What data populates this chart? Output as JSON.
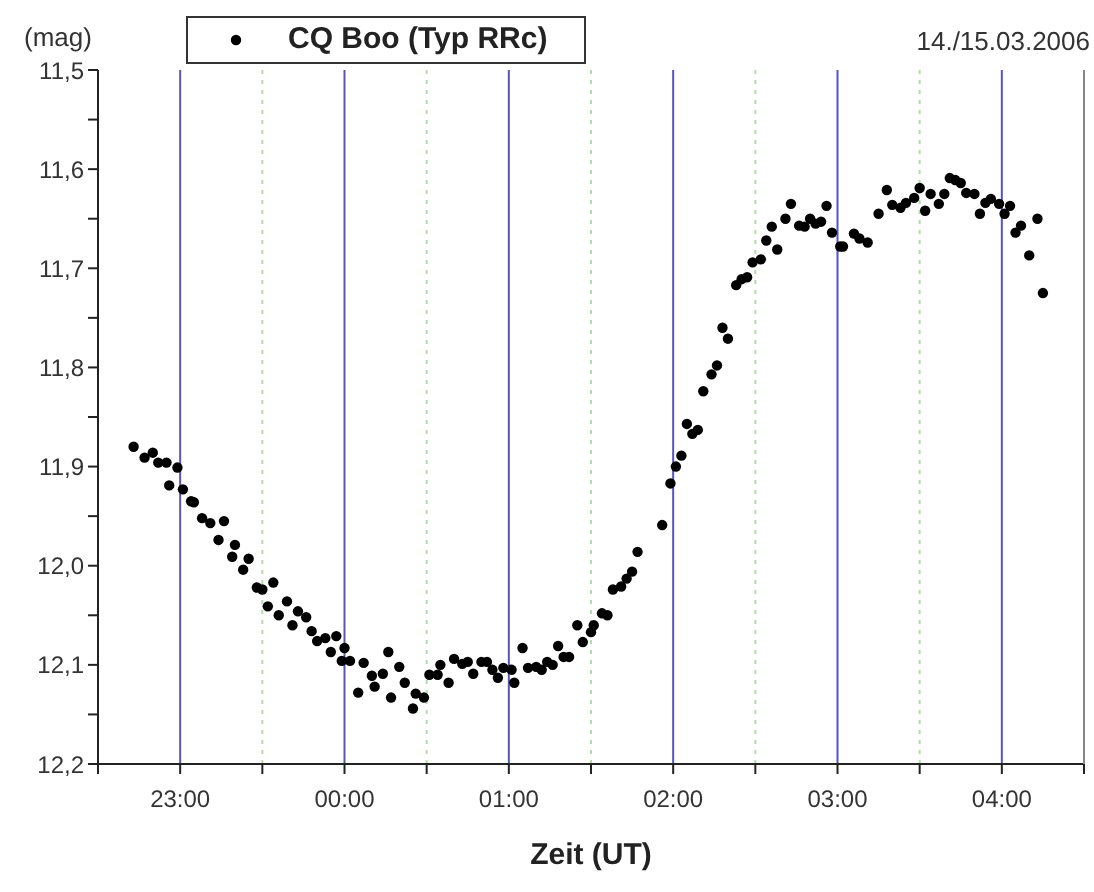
{
  "chart_data": {
    "type": "scatter",
    "subtitle": "14./15.03.2006",
    "xlabel": "Zeit (UT)",
    "ylabel": "(mag)",
    "legend": "top",
    "grid": "x",
    "marker": "circle",
    "xlim": [
      "2006-03-14T22:30",
      "2006-03-15T04:30"
    ],
    "xticks": [
      {
        "value": "2006-03-14T22:30",
        "label": null
      },
      {
        "value": "2006-03-14T23:00",
        "label": "23:00"
      },
      {
        "value": "2006-03-14T23:30",
        "label": null
      },
      {
        "value": "2006-03-15T00:00",
        "label": "00:00"
      },
      {
        "value": "2006-03-15T00:30",
        "label": null
      },
      {
        "value": "2006-03-15T01:00",
        "label": "01:00"
      },
      {
        "value": "2006-03-15T01:30",
        "label": null
      },
      {
        "value": "2006-03-15T02:00",
        "label": "02:00"
      },
      {
        "value": "2006-03-15T02:30",
        "label": null
      },
      {
        "value": "2006-03-15T03:00",
        "label": "03:00"
      },
      {
        "value": "2006-03-15T03:30",
        "label": null
      },
      {
        "value": "2006-03-15T04:00",
        "label": "04:00"
      },
      {
        "value": "2006-03-15T04:30",
        "label": null
      }
    ],
    "ylim": [
      12.2,
      11.5
    ],
    "yticks": [
      {
        "value": 11.5,
        "label": "11,5"
      },
      {
        "value": 11.55,
        "label": null
      },
      {
        "value": 11.6,
        "label": "11,6"
      },
      {
        "value": 11.65,
        "label": null
      },
      {
        "value": 11.7,
        "label": "11,7"
      },
      {
        "value": 11.75,
        "label": null
      },
      {
        "value": 11.8,
        "label": "11,8"
      },
      {
        "value": 11.85,
        "label": null
      },
      {
        "value": 11.9,
        "label": "11,9"
      },
      {
        "value": 11.95,
        "label": null
      },
      {
        "value": 12.0,
        "label": "12,0"
      },
      {
        "value": 12.05,
        "label": null
      },
      {
        "value": 12.1,
        "label": "12,1"
      },
      {
        "value": 12.15,
        "label": null
      },
      {
        "value": 12.2,
        "label": "12,2"
      }
    ],
    "series": [
      {
        "name": "CQ Boo (Typ RRc)",
        "color": "#000000",
        "x": [
          "2006-03-14T22:43",
          "2006-03-14T22:47",
          "2006-03-14T22:50",
          "2006-03-14T22:52",
          "2006-03-14T22:55",
          "2006-03-14T22:56",
          "2006-03-14T22:59",
          "2006-03-14T23:01",
          "2006-03-14T23:04",
          "2006-03-14T23:05",
          "2006-03-14T23:08",
          "2006-03-14T23:11",
          "2006-03-14T23:14",
          "2006-03-14T23:16",
          "2006-03-14T23:19",
          "2006-03-14T23:20",
          "2006-03-14T23:23",
          "2006-03-14T23:25",
          "2006-03-14T23:28",
          "2006-03-14T23:30",
          "2006-03-14T23:32",
          "2006-03-14T23:34",
          "2006-03-14T23:36",
          "2006-03-14T23:39",
          "2006-03-14T23:41",
          "2006-03-14T23:43",
          "2006-03-14T23:46",
          "2006-03-14T23:48",
          "2006-03-14T23:50",
          "2006-03-14T23:53",
          "2006-03-14T23:55",
          "2006-03-14T23:57",
          "2006-03-14T23:59",
          "2006-03-15T00:00",
          "2006-03-15T00:02",
          "2006-03-15T00:05",
          "2006-03-15T00:07",
          "2006-03-15T00:10",
          "2006-03-15T00:11",
          "2006-03-15T00:14",
          "2006-03-15T00:16",
          "2006-03-15T00:17",
          "2006-03-15T00:20",
          "2006-03-15T00:22",
          "2006-03-15T00:25",
          "2006-03-15T00:26",
          "2006-03-15T00:29",
          "2006-03-15T00:31",
          "2006-03-15T00:34",
          "2006-03-15T00:35",
          "2006-03-15T00:38",
          "2006-03-15T00:40",
          "2006-03-15T00:43",
          "2006-03-15T00:45",
          "2006-03-15T00:47",
          "2006-03-15T00:50",
          "2006-03-15T00:52",
          "2006-03-15T00:54",
          "2006-03-15T00:56",
          "2006-03-15T00:58",
          "2006-03-15T01:01",
          "2006-03-15T01:02",
          "2006-03-15T01:05",
          "2006-03-15T01:07",
          "2006-03-15T01:10",
          "2006-03-15T01:12",
          "2006-03-15T01:14",
          "2006-03-15T01:16",
          "2006-03-15T01:18",
          "2006-03-15T01:20",
          "2006-03-15T01:22",
          "2006-03-15T01:25",
          "2006-03-15T01:27",
          "2006-03-15T01:30",
          "2006-03-15T01:31",
          "2006-03-15T01:34",
          "2006-03-15T01:36",
          "2006-03-15T01:38",
          "2006-03-15T01:41",
          "2006-03-15T01:43",
          "2006-03-15T01:45",
          "2006-03-15T01:47",
          "2006-03-15T01:56",
          "2006-03-15T01:59",
          "2006-03-15T02:01",
          "2006-03-15T02:03",
          "2006-03-15T02:05",
          "2006-03-15T02:07",
          "2006-03-15T02:09",
          "2006-03-15T02:11",
          "2006-03-15T02:14",
          "2006-03-15T02:16",
          "2006-03-15T02:18",
          "2006-03-15T02:20",
          "2006-03-15T02:23",
          "2006-03-15T02:25",
          "2006-03-15T02:27",
          "2006-03-15T02:29",
          "2006-03-15T02:32",
          "2006-03-15T02:34",
          "2006-03-15T02:36",
          "2006-03-15T02:38",
          "2006-03-15T02:41",
          "2006-03-15T02:43",
          "2006-03-15T02:46",
          "2006-03-15T02:48",
          "2006-03-15T02:50",
          "2006-03-15T02:52",
          "2006-03-15T02:54",
          "2006-03-15T02:56",
          "2006-03-15T02:58",
          "2006-03-15T03:01",
          "2006-03-15T03:02",
          "2006-03-15T03:06",
          "2006-03-15T03:08",
          "2006-03-15T03:11",
          "2006-03-15T03:15",
          "2006-03-15T03:18",
          "2006-03-15T03:20",
          "2006-03-15T03:23",
          "2006-03-15T03:25",
          "2006-03-15T03:28",
          "2006-03-15T03:30",
          "2006-03-15T03:32",
          "2006-03-15T03:34",
          "2006-03-15T03:37",
          "2006-03-15T03:39",
          "2006-03-15T03:41",
          "2006-03-15T03:43",
          "2006-03-15T03:45",
          "2006-03-15T03:47",
          "2006-03-15T03:50",
          "2006-03-15T03:52",
          "2006-03-15T03:54",
          "2006-03-15T03:56",
          "2006-03-15T03:59",
          "2006-03-15T04:01",
          "2006-03-15T04:03",
          "2006-03-15T04:05",
          "2006-03-15T04:07",
          "2006-03-15T04:10",
          "2006-03-15T04:13",
          "2006-03-15T04:15"
        ],
        "values": [
          11.88,
          11.891,
          11.886,
          11.896,
          11.896,
          11.919,
          11.901,
          11.923,
          11.935,
          11.936,
          11.952,
          11.957,
          11.974,
          11.955,
          11.991,
          11.979,
          12.004,
          11.993,
          12.022,
          12.024,
          12.041,
          12.017,
          12.05,
          12.036,
          12.06,
          12.046,
          12.052,
          12.066,
          12.076,
          12.073,
          12.087,
          12.071,
          12.096,
          12.083,
          12.096,
          12.128,
          12.098,
          12.111,
          12.122,
          12.109,
          12.087,
          12.133,
          12.102,
          12.118,
          12.144,
          12.129,
          12.133,
          12.11,
          12.11,
          12.1,
          12.118,
          12.094,
          12.099,
          12.097,
          12.109,
          12.097,
          12.097,
          12.105,
          12.113,
          12.103,
          12.105,
          12.118,
          12.083,
          12.103,
          12.102,
          12.105,
          12.097,
          12.1,
          12.081,
          12.092,
          12.092,
          12.06,
          12.077,
          12.067,
          12.06,
          12.048,
          12.05,
          12.024,
          12.021,
          12.013,
          12.006,
          11.986,
          11.959,
          11.917,
          11.9,
          11.889,
          11.857,
          11.867,
          11.863,
          11.824,
          11.807,
          11.798,
          11.76,
          11.771,
          11.717,
          11.711,
          11.709,
          11.694,
          11.691,
          11.672,
          11.658,
          11.681,
          11.65,
          11.635,
          11.657,
          11.658,
          11.65,
          11.655,
          11.653,
          11.637,
          11.664,
          11.678,
          11.678,
          11.665,
          11.67,
          11.674,
          11.645,
          11.621,
          11.636,
          11.639,
          11.634,
          11.629,
          11.619,
          11.642,
          11.625,
          11.635,
          11.625,
          11.609,
          11.611,
          11.614,
          11.624,
          11.625,
          11.645,
          11.634,
          11.63,
          11.635,
          11.645,
          11.637,
          11.664,
          11.657,
          11.687,
          11.65,
          11.725
        ]
      }
    ]
  }
}
